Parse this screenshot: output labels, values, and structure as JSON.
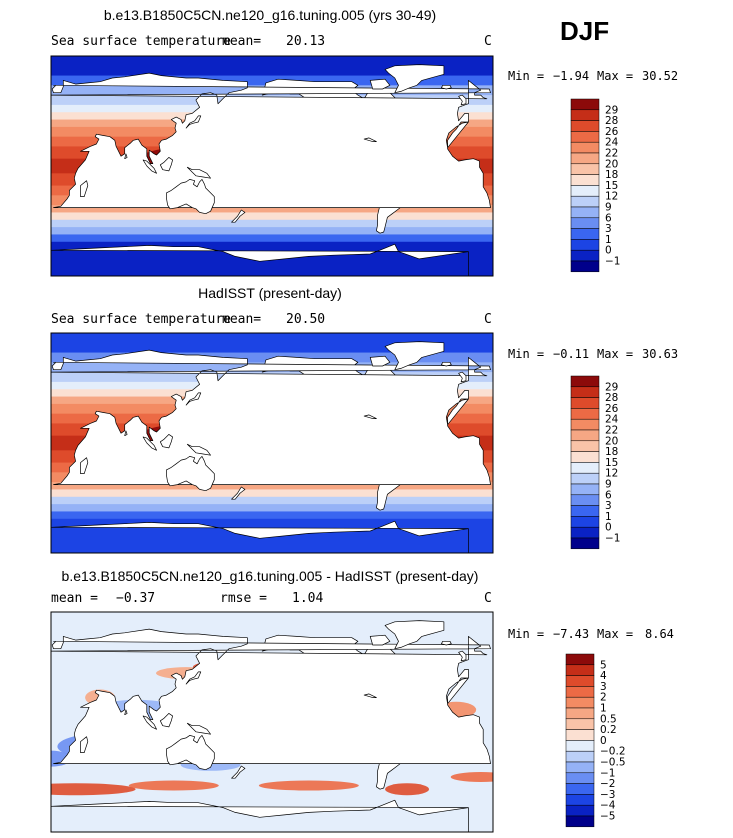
{
  "season_label": "DJF",
  "units": "C",
  "colors": {
    "land": "#ffffff",
    "frame": "#000000",
    "abs_scale": [
      "#00008b",
      "#0a22c4",
      "#1c44e4",
      "#3a66f0",
      "#6a8ef2",
      "#95b2f6",
      "#bcd0f8",
      "#e4eefb",
      "#fbe0d2",
      "#f9c3a8",
      "#f6a784",
      "#f38b63",
      "#ec6a45",
      "#de4b2b",
      "#c52e18",
      "#8c0a0a"
    ],
    "diff_scale": [
      "#00008b",
      "#0a22c4",
      "#1c44e4",
      "#3a66f0",
      "#6a8ef2",
      "#95b2f6",
      "#bcd0f8",
      "#e4eefb",
      "#fbe0d2",
      "#f9c3a8",
      "#f6a784",
      "#f38b63",
      "#ec6a45",
      "#de4b2b",
      "#c52e18",
      "#8c0a0a"
    ]
  },
  "chart_data": [
    {
      "type": "heatmap",
      "title": "b.e13.B1850C5CN.ne120_g16.tuning.005 (yrs 30-49)",
      "variable": "Sea surface temperature",
      "mean_label": "mean=",
      "mean_value": "20.13",
      "units": "C",
      "min_label": "Min =",
      "min_value": "−1.94",
      "max_label": "Max =",
      "max_value": "30.52",
      "levels": [
        "29",
        "28",
        "26",
        "24",
        "22",
        "20",
        "18",
        "15",
        "12",
        "9",
        "6",
        "3",
        "1",
        "0",
        "−1"
      ],
      "min": -1.94,
      "max": 30.52,
      "mean": 20.13
    },
    {
      "type": "heatmap",
      "title": "HadISST (present-day)",
      "variable": "Sea surface temperature",
      "mean_label": "mean=",
      "mean_value": "20.50",
      "units": "C",
      "min_label": "Min =",
      "min_value": "−0.11",
      "max_label": "Max =",
      "max_value": "30.63",
      "levels": [
        "29",
        "28",
        "26",
        "24",
        "22",
        "20",
        "18",
        "15",
        "12",
        "9",
        "6",
        "3",
        "1",
        "0",
        "−1"
      ],
      "min": -0.11,
      "max": 30.63,
      "mean": 20.5
    },
    {
      "type": "heatmap",
      "title": "b.e13.B1850C5CN.ne120_g16.tuning.005 - HadISST (present-day)",
      "mean_label": "mean =",
      "mean_value": "−0.37",
      "rmse_label": "rmse =",
      "rmse_value": "1.04",
      "units": "C",
      "min_label": "Min =",
      "min_value": "−7.43",
      "max_label": "Max =",
      "max_value": "8.64",
      "levels": [
        "5",
        "4",
        "3",
        "2",
        "1",
        "0.5",
        "0.2",
        "0",
        "−0.2",
        "−0.5",
        "−1",
        "−2",
        "−3",
        "−4",
        "−5"
      ],
      "min": -7.43,
      "max": 8.64,
      "mean": -0.37,
      "rmse": 1.04
    }
  ]
}
